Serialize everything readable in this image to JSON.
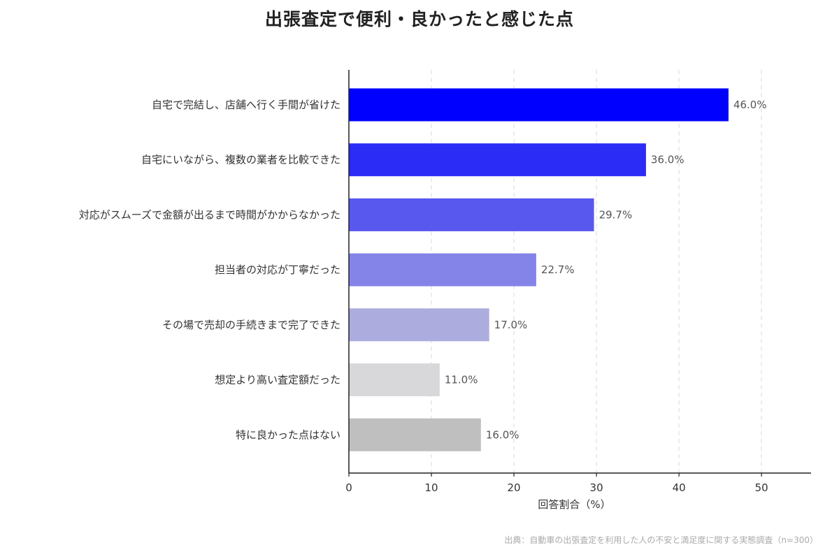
{
  "chart_data": {
    "type": "bar",
    "orientation": "horizontal",
    "title": "出張査定で便利・良かったと感じた点",
    "xlabel": "回答割合（%）",
    "ylabel": "",
    "xlim": [
      0,
      56
    ],
    "xticks": [
      0,
      10,
      20,
      30,
      40,
      50
    ],
    "grid": "vertical dashed",
    "categories": [
      "自宅で完結し、店舗へ行く手間が省けた",
      "自宅にいながら、複数の業者を比較できた",
      "対応がスムーズで金額が出るまで時間がかからなかった",
      "担当者の対応が丁寧だった",
      "その場で売却の手続きまで完了できた",
      "想定より高い査定額だった",
      "特に良かった点はない"
    ],
    "values": [
      46.0,
      36.0,
      29.7,
      22.7,
      17.0,
      11.0,
      16.0
    ],
    "value_labels": [
      "46.0%",
      "36.0%",
      "29.7%",
      "22.7%",
      "17.0%",
      "11.0%",
      "16.0%"
    ],
    "colors": [
      "#0000ff",
      "#2c2cf7",
      "#5858ef",
      "#8484e8",
      "#acacde",
      "#d8d8da",
      "#c0bfc0"
    ],
    "source": "出典：自動車の出張査定を利用した人の不安と満足度に関する実態調査（n=300）"
  }
}
